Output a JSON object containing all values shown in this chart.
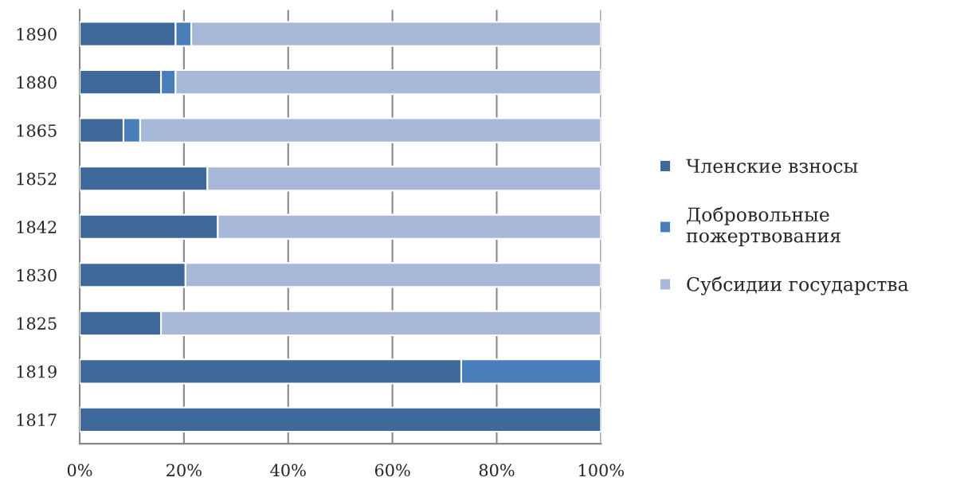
{
  "chart_data": {
    "type": "bar",
    "orientation": "horizontal",
    "stacked": true,
    "categories": [
      "1890",
      "1880",
      "1865",
      "1852",
      "1842",
      "1830",
      "1825",
      "1819",
      "1817"
    ],
    "series": [
      {
        "name": "Членские взносы",
        "color": "#3f689b",
        "values": [
          18.4,
          15.6,
          8.4,
          24.5,
          26.5,
          20.3,
          15.6,
          73.2,
          100
        ]
      },
      {
        "name": "Добровольные пожертвования",
        "color": "#4a7ebb",
        "values": [
          3.0,
          2.8,
          3.2,
          null,
          null,
          null,
          null,
          26.8,
          null
        ]
      },
      {
        "name": "Субсидии государства",
        "color": "#a7b8d8",
        "values": [
          78.6,
          81.6,
          88.4,
          75.5,
          73.5,
          79.7,
          84.4,
          null,
          null
        ]
      }
    ],
    "xlim": [
      0,
      100
    ],
    "xticks": [
      {
        "value": 0,
        "label": "0%"
      },
      {
        "value": 20,
        "label": "20%"
      },
      {
        "value": 40,
        "label": "40%"
      },
      {
        "value": 60,
        "label": "60%"
      },
      {
        "value": 80,
        "label": "80%"
      },
      {
        "value": 100,
        "label": "100%"
      }
    ],
    "grid": "x",
    "legend": "right"
  }
}
